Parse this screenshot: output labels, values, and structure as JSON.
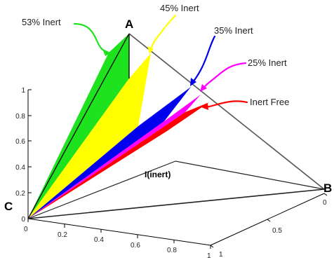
{
  "vertices": {
    "A": "A",
    "B": "B",
    "C": "C"
  },
  "inner_label": "I(inert)",
  "regions": [
    {
      "name": "53% Inert",
      "color": "#1fe21f"
    },
    {
      "name": "45% Inert",
      "color": "#ffff00"
    },
    {
      "name": "35% Inert",
      "color": "#0000ee"
    },
    {
      "name": "25% Inert",
      "color": "#ff00ff"
    },
    {
      "name": "Inert Free",
      "color": "#ff0000"
    }
  ],
  "axes": {
    "vertical_ticks": [
      "0",
      "0.2",
      "0.4",
      "0.6",
      "0.8",
      "1"
    ],
    "front_ticks": [
      "0",
      "0.2",
      "0.4",
      "0.6",
      "0.8",
      "1"
    ],
    "side_ticks": [
      "0",
      "0.5",
      "1"
    ]
  }
}
